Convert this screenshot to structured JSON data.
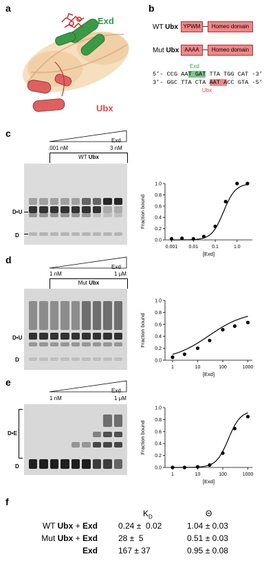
{
  "panels": {
    "a": {
      "letter": "a",
      "exd_label": "Exd",
      "ubx_label": "Ubx"
    },
    "b": {
      "letter": "b",
      "wt_prefix": "WT ",
      "wt_bold": "Ubx",
      "wt_motif": "YPWM",
      "wt_domain": "Homeo domain",
      "mut_prefix": "Mut ",
      "mut_bold": "Ubx",
      "mut_motif": "AAAA",
      "mut_domain": "Homeo domain",
      "exd_site_label": "Exd",
      "ubx_site_label": "Ubx",
      "seq_top_1": "5’- CCG AA",
      "seq_top_exd": "T GAT",
      "seq_top_2": " TTA TGG CAT -3’",
      "seq_bot_1": "3’- GGC TTA CTA ",
      "seq_bot_ubx": "AAT A",
      "seq_bot_2": "CC GTA -5’"
    },
    "c": {
      "letter": "c",
      "gradient_label": "Exd",
      "low": ".001 nM",
      "high": "3 nM",
      "gel_prefix": "WT ",
      "gel_bold": "Ubx",
      "band_du": "D•U",
      "band_d": "D"
    },
    "d": {
      "letter": "d",
      "gradient_label": "Exd",
      "low": "1 nM",
      "high": "1 μM",
      "gel_prefix": "Mut ",
      "gel_bold": "Ubx",
      "band_du": "D•U",
      "band_d": "D"
    },
    "e": {
      "letter": "e",
      "gradient_label": "Exd",
      "low": "1 nM",
      "high": "1 μM",
      "band_de": "D•E",
      "band_d": "D"
    },
    "f": {
      "letter": "f",
      "col_kd": "K",
      "col_kd_sub": "D",
      "col_theta": "Θ",
      "rows": [
        {
          "prefix": "WT ",
          "bold1": "Ubx",
          "mid": " + ",
          "bold2": "Exd",
          "kd": "0.24 ±  0.02",
          "theta": "1.04 ± 0.03"
        },
        {
          "prefix": "Mut ",
          "bold1": "Ubx",
          "mid": " + ",
          "bold2": "Exd",
          "kd": "28 ±  5",
          "theta": "0.51 ± 0.03"
        },
        {
          "prefix": "",
          "bold1": "",
          "mid": "",
          "bold2": "Exd",
          "kd": "167 ± 37",
          "theta": "0.95 ± 0.08"
        }
      ]
    }
  },
  "colors": {
    "green": "#2f9e3f",
    "red": "#e0464b",
    "box_red": "#f08787",
    "highlight_green": "#7fc58a"
  },
  "chart_data": [
    {
      "type": "scatter",
      "xlabel": "[Exd]",
      "ylabel": "Fraction bound",
      "xscale": "log",
      "xlim": [
        0.0005,
        5
      ],
      "ylim": [
        0,
        1.0
      ],
      "xticks": [
        "0.001",
        "0.01",
        "0.1",
        "1.0"
      ],
      "yticks": [
        "0.0",
        "0.2",
        "0.4",
        "0.6",
        "0.8",
        "1.0"
      ],
      "x": [
        0.001,
        0.003,
        0.01,
        0.03,
        0.1,
        0.3,
        1,
        3
      ],
      "y": [
        0.02,
        0.03,
        0.02,
        0.06,
        0.24,
        0.68,
        1.0,
        1.0
      ]
    },
    {
      "type": "scatter",
      "xlabel": "[Exd]",
      "ylabel": "Fraction bound",
      "xscale": "log",
      "xlim": [
        0.5,
        1500
      ],
      "ylim": [
        0,
        1.0
      ],
      "xticks": [
        "1",
        "10",
        "100",
        "1000"
      ],
      "yticks": [
        "0.0",
        "0.2",
        "0.4",
        "0.6",
        "0.8",
        "1.0"
      ],
      "x": [
        1,
        3,
        10,
        30,
        100,
        300,
        1000
      ],
      "y": [
        0.05,
        0.1,
        0.2,
        0.33,
        0.51,
        0.57,
        0.63
      ]
    },
    {
      "type": "scatter",
      "xlabel": "[Exd]",
      "ylabel": "Fraction bound",
      "xscale": "log",
      "xlim": [
        0.5,
        1500
      ],
      "ylim": [
        0,
        1.0
      ],
      "xticks": [
        "1",
        "10",
        "100",
        "1000"
      ],
      "yticks": [
        "0.0",
        "0.2",
        "0.4",
        "0.6",
        "0.8",
        "1.0"
      ],
      "x": [
        1,
        3,
        10,
        30,
        100,
        300,
        1000
      ],
      "y": [
        0.0,
        0.0,
        0.01,
        0.04,
        0.24,
        0.65,
        0.85
      ]
    }
  ]
}
